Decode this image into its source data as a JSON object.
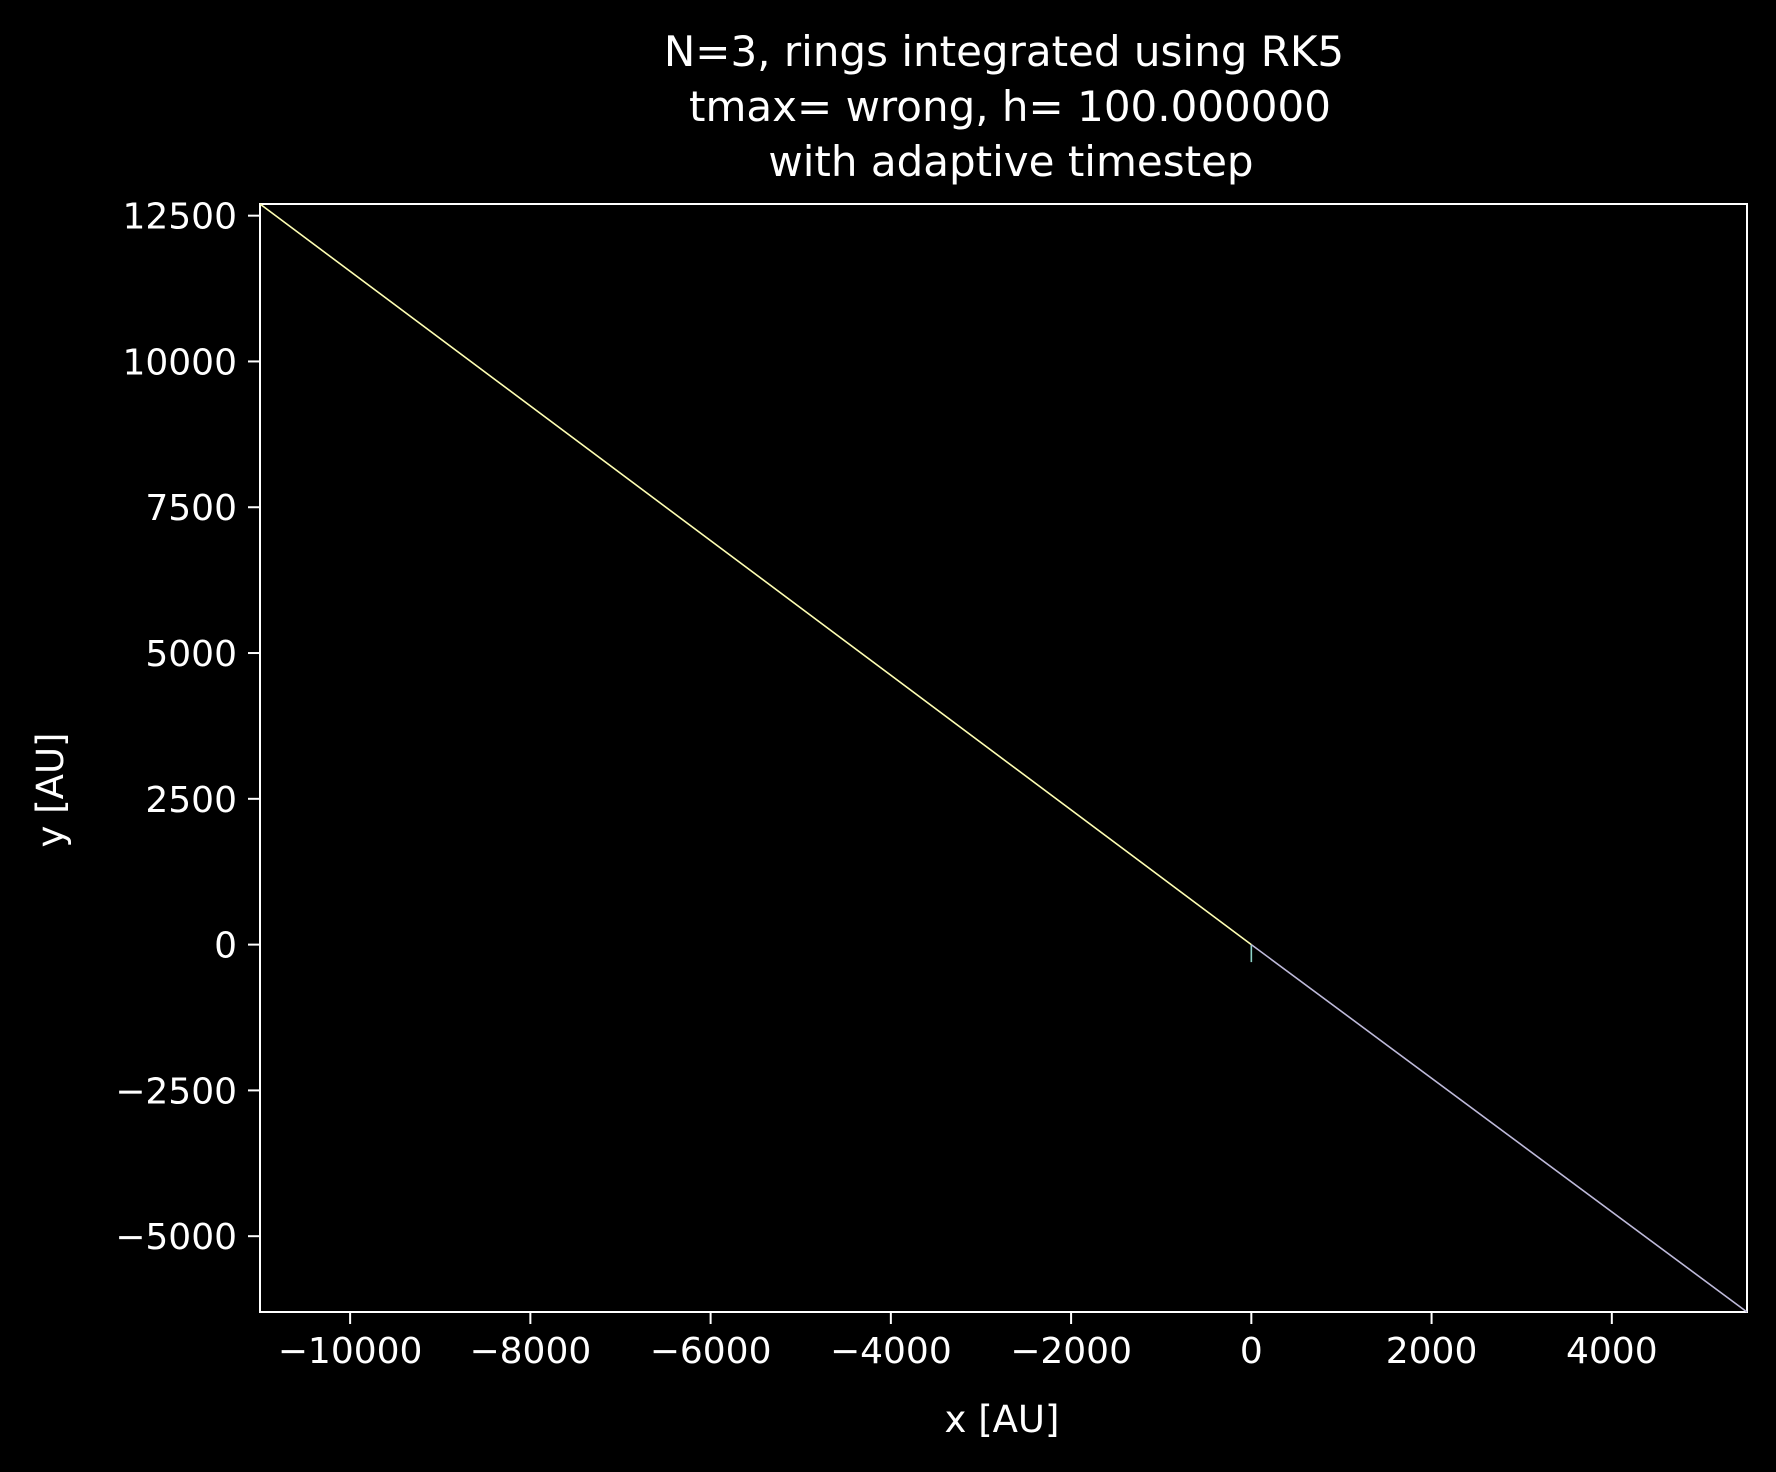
{
  "chart_data": {
    "type": "line",
    "title_lines": [
      "N=3, rings integrated using RK5",
      "tmax= wrong, h= 100.000000",
      "with adaptive timestep"
    ],
    "xlabel": "x [AU]",
    "ylabel": "y [AU]",
    "xlim": [
      -11000,
      5500
    ],
    "ylim": [
      -6300,
      12700
    ],
    "xticks": [
      -10000,
      -8000,
      -6000,
      -4000,
      -2000,
      0,
      2000,
      4000
    ],
    "yticks": [
      -5000,
      -2500,
      0,
      2500,
      5000,
      7500,
      10000,
      12500
    ],
    "xtick_labels": [
      "−10000",
      "−8000",
      "−6000",
      "−4000",
      "−2000",
      "0",
      "2000",
      "4000"
    ],
    "ytick_labels": [
      "−5000",
      "−2500",
      "0",
      "2500",
      "5000",
      "7500",
      "10000",
      "12500"
    ],
    "grid": false,
    "background": "#000000",
    "series": [
      {
        "color": "#8dd3c7",
        "x": [
          0,
          0,
          0
        ],
        "y": [
          0,
          -150,
          -300
        ]
      },
      {
        "color": "#ffffb3",
        "x": [
          0,
          -11000
        ],
        "y": [
          0,
          12700
        ]
      },
      {
        "color": "#bebada",
        "x": [
          0,
          5500
        ],
        "y": [
          0,
          -6300
        ]
      }
    ]
  }
}
